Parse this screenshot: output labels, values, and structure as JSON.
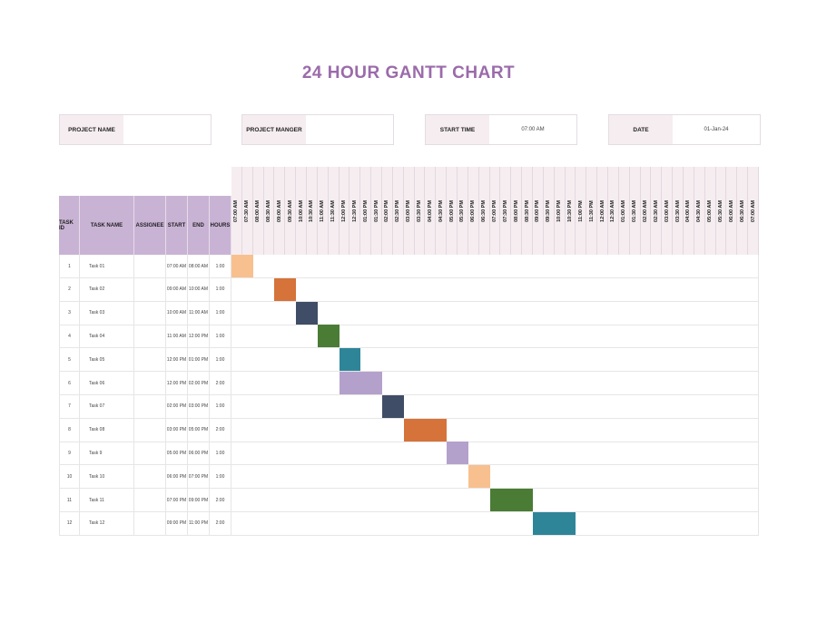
{
  "title": "24 HOUR GANTT CHART",
  "info": [
    {
      "label": "PROJECT NAME",
      "value": ""
    },
    {
      "label": "PROJECT MANGER",
      "value": ""
    },
    {
      "label": "START TIME",
      "value": "07:00 AM"
    },
    {
      "label": "DATE",
      "value": "01-Jan-24"
    }
  ],
  "headers": {
    "task_id": "TASK ID",
    "task_name": "TASK NAME",
    "assignee": "ASSIGNEE",
    "start": "START",
    "end": "END",
    "hours": "HOURS"
  },
  "time_slots": [
    "07:00 AM",
    "07:30 AM",
    "08:00 AM",
    "08:30 AM",
    "09:00 AM",
    "09:30 AM",
    "10:00 AM",
    "10:30 AM",
    "11:00 AM",
    "11:30 AM",
    "12:00 PM",
    "12:30 PM",
    "01:00 PM",
    "01:30 PM",
    "02:00 PM",
    "02:30 PM",
    "03:00 PM",
    "03:30 PM",
    "04:00 PM",
    "04:30 PM",
    "05:00 PM",
    "05:30 PM",
    "06:00 PM",
    "06:30 PM",
    "07:00 PM",
    "07:30 PM",
    "08:00 PM",
    "08:30 PM",
    "09:00 PM",
    "09:30 PM",
    "10:00 PM",
    "10:30 PM",
    "11:00 PM",
    "11:30 PM",
    "12:00 AM",
    "12:30 AM",
    "01:00 AM",
    "01:30 AM",
    "02:00 AM",
    "02:30 AM",
    "03:00 AM",
    "03:30 AM",
    "04:00 AM",
    "04:30 AM",
    "05:00 AM",
    "05:30 AM",
    "06:00 AM",
    "06:30 AM",
    "07:00 AM"
  ],
  "tasks": [
    {
      "id": "1",
      "name": "Task 01",
      "assignee": "",
      "start": "07:00 AM",
      "end": "08:00 AM",
      "hours": "1:00",
      "color": "#F8C08F"
    },
    {
      "id": "2",
      "name": "Task 02",
      "assignee": "",
      "start": "09:00 AM",
      "end": "10:00 AM",
      "hours": "1:00",
      "color": "#D5733A"
    },
    {
      "id": "3",
      "name": "Task 03",
      "assignee": "",
      "start": "10:00 AM",
      "end": "11:00 AM",
      "hours": "1:00",
      "color": "#3F4D66"
    },
    {
      "id": "4",
      "name": "Task 04",
      "assignee": "",
      "start": "11:00 AM",
      "end": "12:00 PM",
      "hours": "1:00",
      "color": "#4A7C35"
    },
    {
      "id": "5",
      "name": "Task 05",
      "assignee": "",
      "start": "12:00 PM",
      "end": "01:00 PM",
      "hours": "1:00",
      "color": "#2E8598"
    },
    {
      "id": "6",
      "name": "Task 06",
      "assignee": "",
      "start": "12:00 PM",
      "end": "02:00 PM",
      "hours": "2:00",
      "color": "#B3A1CB"
    },
    {
      "id": "7",
      "name": "Task 07",
      "assignee": "",
      "start": "02:00 PM",
      "end": "03:00 PM",
      "hours": "1:00",
      "color": "#3F4D66"
    },
    {
      "id": "8",
      "name": "Task 08",
      "assignee": "",
      "start": "03:00 PM",
      "end": "05:00 PM",
      "hours": "2:00",
      "color": "#D5733A"
    },
    {
      "id": "9",
      "name": "Task 9",
      "assignee": "",
      "start": "05:00 PM",
      "end": "06:00 PM",
      "hours": "1:00",
      "color": "#B3A1CB"
    },
    {
      "id": "10",
      "name": "Task 10",
      "assignee": "",
      "start": "06:00 PM",
      "end": "07:00 PM",
      "hours": "1:00",
      "color": "#F8C08F"
    },
    {
      "id": "11",
      "name": "Task 11",
      "assignee": "",
      "start": "07:00 PM",
      "end": "09:00 PM",
      "hours": "2:00",
      "color": "#4A7C35"
    },
    {
      "id": "12",
      "name": "Task 12",
      "assignee": "",
      "start": "09:00 PM",
      "end": "11:00 PM",
      "hours": "2:00",
      "color": "#2E8598"
    }
  ]
}
